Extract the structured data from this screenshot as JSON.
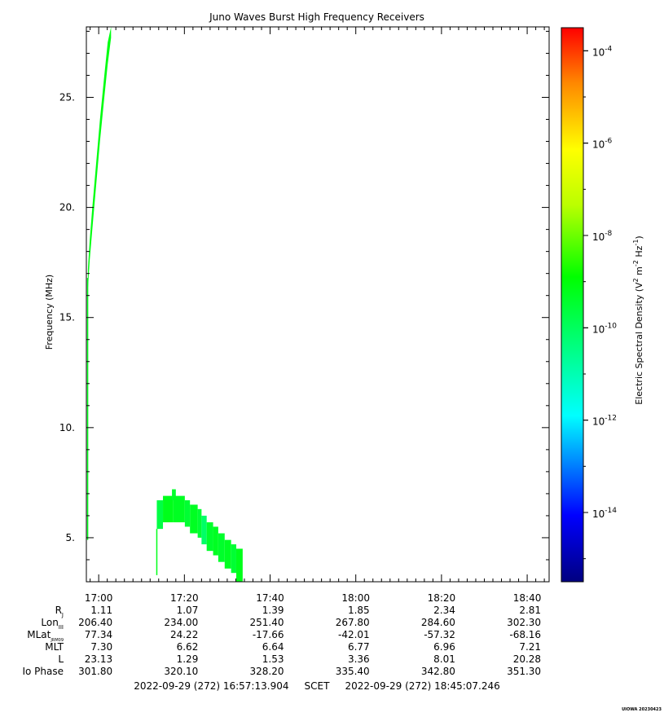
{
  "chart_data": {
    "type": "heatmap",
    "title": "Juno Waves Burst High Frequency Receivers",
    "ylabel": "Frequency (MHz)",
    "ylim": [
      3.0,
      28.2
    ],
    "yticks": [
      5,
      10,
      15,
      20,
      25
    ],
    "ytick_labels": [
      "5.",
      "10.",
      "15.",
      "20.",
      "25."
    ],
    "xlim_minutes": [
      16.952,
      18.752
    ],
    "xticks": [
      "17:00",
      "17:20",
      "17:40",
      "18:00",
      "18:20",
      "18:40"
    ],
    "colorbar": {
      "label": "Electric Spectral Density (V",
      "label_sup1": "2",
      "label_mid": " m",
      "label_sup2": "-2",
      "label_mid2": " Hz",
      "label_sup3": "-1",
      "label_end": ")",
      "log_range": [
        -15.5,
        -3.5
      ],
      "ticks": [
        {
          "base": "10",
          "exp": "-4",
          "log": -4
        },
        {
          "base": "10",
          "exp": "-6",
          "log": -6
        },
        {
          "base": "10",
          "exp": "-8",
          "log": -8
        },
        {
          "base": "10",
          "exp": "-10",
          "log": -10
        },
        {
          "base": "10",
          "exp": "-12",
          "log": -12
        },
        {
          "base": "10",
          "exp": "-14",
          "log": -14
        }
      ]
    },
    "emissions": [
      {
        "name": "sweep",
        "t": [
          16.958,
          16.965,
          16.975,
          16.99,
          17.005,
          17.02,
          17.035,
          17.048
        ],
        "f_low": [
          16.3,
          17.6,
          19.0,
          21.0,
          23.0,
          24.8,
          26.5,
          27.7
        ],
        "f_high": [
          17.2,
          18.5,
          20.0,
          22.0,
          24.0,
          25.8,
          27.5,
          28.2
        ],
        "log_psd": -9.2
      },
      {
        "name": "blocks",
        "cells": [
          {
            "t0": 17.226,
            "t1": 17.25,
            "f0": 5.4,
            "f1": 6.7,
            "log_psd": -9.8
          },
          {
            "t0": 17.25,
            "t1": 17.29,
            "f0": 5.7,
            "f1": 6.9,
            "log_psd": -9.3
          },
          {
            "t0": 17.285,
            "t1": 17.3,
            "f0": 6.7,
            "f1": 7.2,
            "log_psd": -9.5
          },
          {
            "t0": 17.29,
            "t1": 17.335,
            "f0": 5.7,
            "f1": 6.9,
            "log_psd": -9.4
          },
          {
            "t0": 17.335,
            "t1": 17.355,
            "f0": 5.5,
            "f1": 6.7,
            "log_psd": -9.6
          },
          {
            "t0": 17.355,
            "t1": 17.385,
            "f0": 5.2,
            "f1": 6.5,
            "log_psd": -9.4
          },
          {
            "t0": 17.385,
            "t1": 17.4,
            "f0": 5.0,
            "f1": 6.3,
            "log_psd": -9.6
          },
          {
            "t0": 17.4,
            "t1": 17.42,
            "f0": 4.7,
            "f1": 6.0,
            "log_psd": -10.2
          },
          {
            "t0": 17.42,
            "t1": 17.445,
            "f0": 4.4,
            "f1": 5.7,
            "log_psd": -9.5
          },
          {
            "t0": 17.445,
            "t1": 17.465,
            "f0": 4.2,
            "f1": 5.5,
            "log_psd": -9.4
          },
          {
            "t0": 17.465,
            "t1": 17.49,
            "f0": 3.9,
            "f1": 5.2,
            "log_psd": -9.5
          },
          {
            "t0": 17.49,
            "t1": 17.515,
            "f0": 3.6,
            "f1": 4.9,
            "log_psd": -9.4
          },
          {
            "t0": 17.515,
            "t1": 17.535,
            "f0": 3.4,
            "f1": 4.7,
            "log_psd": -9.6
          },
          {
            "t0": 17.535,
            "t1": 17.56,
            "f0": 3.0,
            "f1": 4.5,
            "log_psd": -9.3
          }
        ]
      },
      {
        "name": "thin-lines",
        "lines": [
          {
            "t": 16.957,
            "f0": 4.9,
            "f1": 16.8,
            "log_psd": -9.3
          },
          {
            "t": 17.226,
            "f0": 3.3,
            "f1": 5.4,
            "log_psd": -9.3
          }
        ]
      }
    ],
    "ephemeris": {
      "rows": [
        {
          "label": "R",
          "sub": "J",
          "values": [
            "1.11",
            "1.07",
            "1.39",
            "1.85",
            "2.34",
            "2.81"
          ]
        },
        {
          "label": "Lon",
          "sub": "III",
          "values": [
            "206.40",
            "234.00",
            "251.40",
            "267.80",
            "284.60",
            "302.30"
          ]
        },
        {
          "label": "MLat",
          "sub": "JRM09",
          "values": [
            "77.34",
            "24.22",
            "-17.66",
            "-42.01",
            "-57.32",
            "-68.16"
          ]
        },
        {
          "label": "MLT",
          "sub": "",
          "values": [
            "7.30",
            "6.62",
            "6.64",
            "6.77",
            "6.96",
            "7.21"
          ]
        },
        {
          "label": "L",
          "sub": "",
          "values": [
            "23.13",
            "1.29",
            "1.53",
            "3.36",
            "8.01",
            "20.28"
          ]
        },
        {
          "label": "Io Phase",
          "sub": "",
          "values": [
            "301.80",
            "320.10",
            "328.20",
            "335.40",
            "342.80",
            "351.30"
          ]
        }
      ]
    },
    "time_range": "2022-09-29 (272) 16:57:13.904     SCET     2022-09-29 (272) 18:45:07.246",
    "credit": "UIOWA 20230423"
  }
}
